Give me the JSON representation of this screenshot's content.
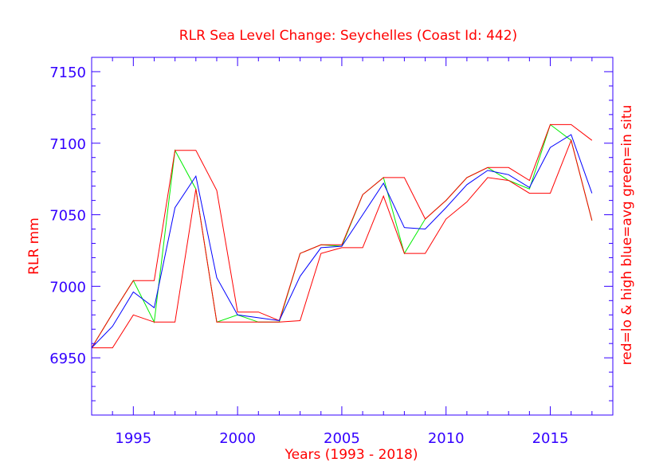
{
  "chart_data": {
    "type": "line",
    "title": "RLR Sea Level Change: Seychelles (Coast Id: 442)",
    "xlabel": "Years (1993 - 2018)",
    "ylabel": "RLR mm",
    "ylabel_right": "red=lo & high  blue=avg  green=in situ",
    "xlim": [
      1993,
      2018
    ],
    "ylim": [
      6910,
      7160
    ],
    "x_ticks": [
      1995,
      2000,
      2005,
      2010,
      2015
    ],
    "y_ticks": [
      6950,
      7000,
      7050,
      7100,
      7150
    ],
    "x": [
      1993,
      1994,
      1995,
      1996,
      1997,
      1998,
      1999,
      2000,
      2001,
      2002,
      2003,
      2004,
      2005,
      2006,
      2007,
      2008,
      2009,
      2010,
      2011,
      2012,
      2013,
      2014,
      2015,
      2016,
      2017
    ],
    "series": [
      {
        "name": "low",
        "color": "#ff0000",
        "values": [
          6957,
          6957,
          6980,
          6975,
          6975,
          7068,
          6975,
          6975,
          6975,
          6975,
          6976,
          7023,
          7027,
          7027,
          7063,
          7023,
          7023,
          7047,
          7059,
          7076,
          7074,
          7065,
          7065,
          7102,
          7046
        ]
      },
      {
        "name": "high",
        "color": "#ff0000",
        "values": [
          6957,
          6981,
          7004,
          7004,
          7095,
          7095,
          7067,
          6982,
          6982,
          6976,
          7023,
          7029,
          7029,
          7064,
          7076,
          7076,
          7047,
          7060,
          7076,
          7083,
          7083,
          7074,
          7113,
          7113,
          7102
        ]
      },
      {
        "name": "avg",
        "color": "#0000ff",
        "values": [
          6957,
          6972,
          6996,
          6985,
          7055,
          7077,
          7006,
          6980,
          6978,
          6976,
          7007,
          7027,
          7028,
          7050,
          7072,
          7041,
          7040,
          7055,
          7071,
          7081,
          7078,
          7069,
          7097,
          7106,
          7065
        ]
      },
      {
        "name": "in situ",
        "color": "#00ee00",
        "values": [
          6957,
          6981,
          7004,
          6975,
          7095,
          7068,
          6975,
          6980,
          6975,
          6975,
          7023,
          7029,
          7028,
          7064,
          7076,
          7023,
          7047,
          7060,
          7076,
          7083,
          7074,
          7068,
          7113,
          7102,
          7046
        ]
      }
    ]
  }
}
